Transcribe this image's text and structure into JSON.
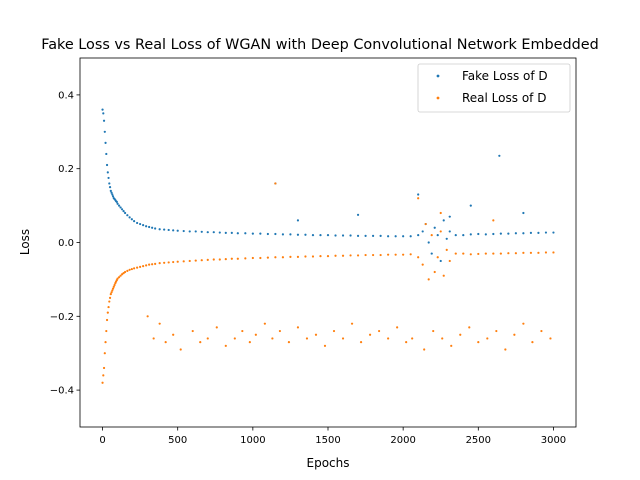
{
  "chart_data": {
    "type": "scatter",
    "title": "Fake Loss vs Real Loss of WGAN with Deep Convolutional Network Embedded",
    "xlabel": "Epochs",
    "ylabel": "Loss",
    "xlim": [
      -150,
      3150
    ],
    "ylim": [
      -0.5,
      0.5
    ],
    "xticks": [
      0,
      500,
      1000,
      1500,
      2000,
      2500,
      3000
    ],
    "yticks": [
      -0.4,
      -0.2,
      0.0,
      0.2,
      0.4
    ],
    "xtick_labels": [
      "0",
      "500",
      "1000",
      "1500",
      "2000",
      "2500",
      "3000"
    ],
    "ytick_labels": [
      "−0.4",
      "−0.2",
      "0.0",
      "0.2",
      "0.4"
    ],
    "legend_position": "top-right",
    "grid": false,
    "series": [
      {
        "name": "Fake Loss of D",
        "color": "#1f77b4",
        "x": [
          0,
          5,
          10,
          15,
          20,
          25,
          30,
          35,
          40,
          45,
          50,
          55,
          60,
          65,
          70,
          75,
          80,
          85,
          90,
          95,
          100,
          110,
          120,
          130,
          140,
          150,
          165,
          180,
          195,
          210,
          230,
          250,
          270,
          290,
          310,
          330,
          350,
          380,
          410,
          440,
          470,
          500,
          540,
          580,
          620,
          660,
          700,
          740,
          780,
          820,
          860,
          900,
          950,
          1000,
          1050,
          1100,
          1150,
          1200,
          1250,
          1300,
          1350,
          1400,
          1450,
          1500,
          1550,
          1600,
          1650,
          1700,
          1750,
          1800,
          1850,
          1900,
          1950,
          2000,
          2050,
          2100,
          2130,
          2150,
          2170,
          2190,
          2210,
          2230,
          2250,
          2270,
          2290,
          2310,
          2350,
          2400,
          2450,
          2500,
          2550,
          2600,
          2650,
          2700,
          2750,
          2800,
          2850,
          2900,
          2950,
          3000,
          1150,
          2640,
          2100,
          2310,
          2450,
          2800,
          1300,
          1700
        ],
        "y": [
          0.36,
          0.35,
          0.33,
          0.3,
          0.27,
          0.24,
          0.21,
          0.19,
          0.175,
          0.16,
          0.15,
          0.14,
          0.135,
          0.13,
          0.125,
          0.12,
          0.118,
          0.115,
          0.112,
          0.11,
          0.105,
          0.1,
          0.095,
          0.09,
          0.085,
          0.08,
          0.074,
          0.068,
          0.063,
          0.058,
          0.053,
          0.05,
          0.047,
          0.044,
          0.042,
          0.04,
          0.038,
          0.036,
          0.035,
          0.034,
          0.033,
          0.032,
          0.031,
          0.03,
          0.03,
          0.029,
          0.028,
          0.028,
          0.027,
          0.026,
          0.026,
          0.025,
          0.025,
          0.024,
          0.024,
          0.023,
          0.023,
          0.022,
          0.022,
          0.021,
          0.021,
          0.02,
          0.02,
          0.02,
          0.019,
          0.019,
          0.019,
          0.018,
          0.018,
          0.018,
          0.018,
          0.017,
          0.017,
          0.017,
          0.017,
          0.02,
          0.03,
          0.05,
          0.0,
          -0.03,
          0.04,
          0.02,
          -0.05,
          0.06,
          0.01,
          0.03,
          0.02,
          0.02,
          0.022,
          0.023,
          0.022,
          0.023,
          0.024,
          0.024,
          0.025,
          0.025,
          0.026,
          0.026,
          0.027,
          0.027,
          0.16,
          0.235,
          0.13,
          0.07,
          0.1,
          0.08,
          0.06,
          0.075
        ]
      },
      {
        "name": "Real Loss of D",
        "color": "#ff7f0e",
        "x": [
          0,
          5,
          10,
          15,
          20,
          25,
          30,
          35,
          40,
          45,
          50,
          55,
          60,
          65,
          70,
          75,
          80,
          85,
          90,
          95,
          100,
          110,
          120,
          130,
          140,
          150,
          165,
          180,
          195,
          210,
          230,
          250,
          270,
          290,
          310,
          330,
          350,
          380,
          410,
          440,
          470,
          500,
          540,
          580,
          620,
          660,
          700,
          740,
          780,
          820,
          860,
          900,
          950,
          1000,
          1050,
          1100,
          1150,
          1200,
          1250,
          1300,
          1350,
          1400,
          1450,
          1500,
          1550,
          1600,
          1650,
          1700,
          1750,
          1800,
          1850,
          1900,
          1950,
          2000,
          2050,
          2100,
          2130,
          2150,
          2170,
          2190,
          2210,
          2230,
          2250,
          2270,
          2290,
          2310,
          2350,
          2400,
          2450,
          2500,
          2550,
          2600,
          2650,
          2700,
          2750,
          2800,
          2850,
          2900,
          2950,
          3000,
          300,
          340,
          380,
          420,
          470,
          520,
          600,
          650,
          700,
          760,
          820,
          880,
          930,
          980,
          1020,
          1080,
          1130,
          1180,
          1240,
          1300,
          1360,
          1420,
          1480,
          1540,
          1600,
          1660,
          1720,
          1780,
          1840,
          1900,
          1960,
          2020,
          2060,
          2140,
          2200,
          2260,
          2320,
          2380,
          2440,
          2500,
          2560,
          2620,
          2680,
          2740,
          2800,
          2860,
          2920,
          2980,
          1150,
          2100,
          2250,
          2600
        ],
        "y": [
          -0.38,
          -0.36,
          -0.34,
          -0.3,
          -0.27,
          -0.24,
          -0.21,
          -0.19,
          -0.175,
          -0.16,
          -0.15,
          -0.14,
          -0.135,
          -0.13,
          -0.125,
          -0.12,
          -0.115,
          -0.11,
          -0.106,
          -0.102,
          -0.098,
          -0.094,
          -0.09,
          -0.086,
          -0.083,
          -0.08,
          -0.077,
          -0.074,
          -0.072,
          -0.07,
          -0.068,
          -0.066,
          -0.064,
          -0.062,
          -0.06,
          -0.059,
          -0.058,
          -0.056,
          -0.055,
          -0.054,
          -0.053,
          -0.052,
          -0.051,
          -0.05,
          -0.049,
          -0.048,
          -0.047,
          -0.046,
          -0.046,
          -0.045,
          -0.044,
          -0.044,
          -0.043,
          -0.042,
          -0.042,
          -0.041,
          -0.04,
          -0.04,
          -0.039,
          -0.039,
          -0.038,
          -0.038,
          -0.037,
          -0.037,
          -0.036,
          -0.036,
          -0.035,
          -0.035,
          -0.034,
          -0.034,
          -0.034,
          -0.033,
          -0.033,
          -0.033,
          -0.032,
          -0.04,
          -0.06,
          0.05,
          -0.1,
          0.02,
          -0.08,
          -0.04,
          0.03,
          -0.09,
          -0.02,
          -0.05,
          -0.03,
          -0.03,
          -0.032,
          -0.031,
          -0.03,
          -0.03,
          -0.03,
          -0.029,
          -0.029,
          -0.028,
          -0.028,
          -0.028,
          -0.027,
          -0.027,
          -0.2,
          -0.26,
          -0.22,
          -0.27,
          -0.25,
          -0.29,
          -0.24,
          -0.27,
          -0.26,
          -0.23,
          -0.28,
          -0.26,
          -0.24,
          -0.27,
          -0.25,
          -0.22,
          -0.26,
          -0.24,
          -0.27,
          -0.23,
          -0.26,
          -0.25,
          -0.28,
          -0.24,
          -0.26,
          -0.22,
          -0.27,
          -0.25,
          -0.24,
          -0.26,
          -0.23,
          -0.27,
          -0.26,
          -0.29,
          -0.24,
          -0.26,
          -0.28,
          -0.25,
          -0.23,
          -0.27,
          -0.26,
          -0.24,
          -0.29,
          -0.25,
          -0.22,
          -0.27,
          -0.24,
          -0.26,
          0.16,
          0.12,
          0.08,
          0.06
        ]
      }
    ]
  }
}
